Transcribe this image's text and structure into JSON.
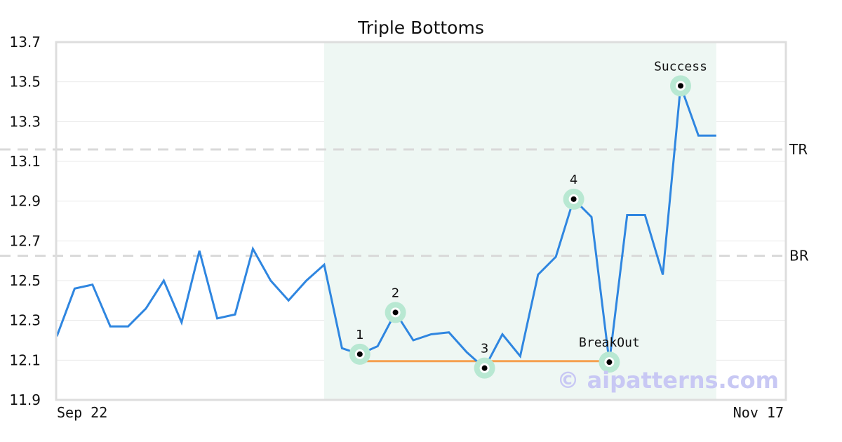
{
  "chart_data": {
    "type": "line",
    "title": "Triple Bottoms",
    "ylim": [
      11.9,
      13.7
    ],
    "yticks": [
      11.9,
      12.1,
      12.3,
      12.5,
      12.7,
      12.9,
      13.1,
      13.3,
      13.5,
      13.7
    ],
    "ytick_labels": [
      "11.9",
      "12.1",
      "12.3",
      "12.5",
      "12.7",
      "12.9",
      "13.1",
      "13.3",
      "13.5",
      "13.7"
    ],
    "xtick_labels": [
      "Sep 22",
      "Nov 17"
    ],
    "grid": true,
    "colors": {
      "line": "#2f86e0",
      "marker_halo": "#b8e8d2",
      "marker": "#000000",
      "support_line": "#f5a050",
      "pattern_region": "#eef7f3",
      "ref_line": "#d9d9d9"
    },
    "series": [
      {
        "values": [
          12.22,
          12.46,
          12.48,
          12.27,
          12.27,
          12.36,
          12.5,
          12.29,
          12.65,
          12.31,
          12.33,
          12.66,
          12.5,
          12.4,
          12.5,
          12.58,
          12.16,
          12.13,
          12.17,
          12.34,
          12.2,
          12.23,
          12.24,
          12.14,
          12.06,
          12.23,
          12.12,
          12.53,
          12.62,
          12.91,
          12.82,
          12.09,
          12.83,
          12.83,
          12.53,
          13.48,
          13.23,
          13.23
        ]
      }
    ],
    "pattern_region": {
      "start_index": 15,
      "end_index": 37
    },
    "reference_lines": [
      {
        "label": "TR",
        "value": 13.16
      },
      {
        "label": "BR",
        "value": 12.625
      }
    ],
    "support_line": {
      "value": 12.095,
      "start_index": 17,
      "end_index": 31
    },
    "points": [
      {
        "label": "1",
        "index": 17,
        "value": 12.13
      },
      {
        "label": "2",
        "index": 19,
        "value": 12.34
      },
      {
        "label": "3",
        "index": 24,
        "value": 12.06
      },
      {
        "label": "4",
        "index": 29,
        "value": 12.91
      },
      {
        "label": "BreakOut",
        "index": 31,
        "value": 12.09
      },
      {
        "label": "Success",
        "index": 35,
        "value": 13.48
      }
    ],
    "watermark": "© aipatterns.com"
  }
}
